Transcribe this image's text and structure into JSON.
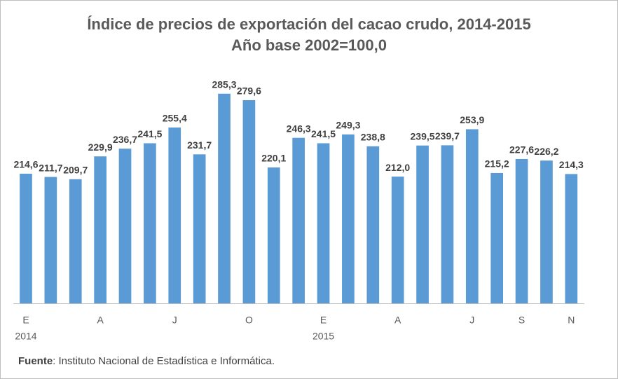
{
  "chart_data": {
    "type": "bar",
    "title": "Índice de precios de exportación del cacao crudo, 2014-2015",
    "subtitle": "Año base 2002=100,0",
    "categories": [
      "E",
      null,
      null,
      "A",
      null,
      null,
      "J",
      null,
      null,
      "O",
      null,
      null,
      "E",
      null,
      null,
      "A",
      null,
      null,
      "J",
      null,
      "S",
      null,
      "N"
    ],
    "year_labels": [
      "2014",
      null,
      null,
      null,
      null,
      null,
      null,
      null,
      null,
      null,
      null,
      null,
      "2015",
      null,
      null,
      null,
      null,
      null,
      null,
      null,
      null,
      null,
      null
    ],
    "values": [
      214.6,
      211.7,
      209.7,
      229.9,
      236.7,
      241.5,
      255.4,
      231.7,
      285.3,
      279.6,
      220.1,
      246.3,
      241.5,
      249.3,
      238.8,
      212.0,
      239.5,
      239.7,
      253.9,
      215.2,
      227.6,
      226.2,
      214.3
    ],
    "value_labels": [
      "214,6",
      "211,7",
      "209,7",
      "229,9",
      "236,7",
      "241,5",
      "255,4",
      "231,7",
      "285,3",
      "279,6",
      "220,1",
      "246,3",
      "241,5",
      "249,3",
      "238,8",
      "212,0",
      "239,5",
      "239,7",
      "253,9",
      "215,2",
      "227,6",
      "226,2",
      "214,3"
    ],
    "color": "#5b9bd5",
    "ylim": [
      100,
      300
    ],
    "source_label": "Fuente",
    "source": ": Instituto Nacional de Estadística e Informática."
  }
}
